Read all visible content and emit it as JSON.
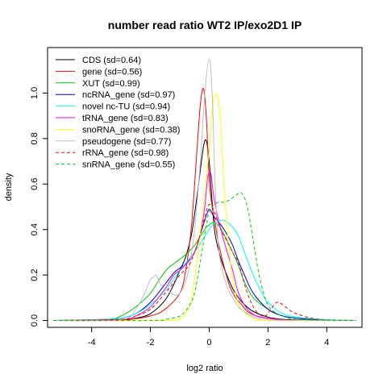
{
  "chart_data": {
    "type": "line",
    "title": "number read ratio WT2 IP/exo2D1 IP",
    "xlabel": "log2 ratio",
    "ylabel": "density",
    "xlim": [
      -5.5,
      5.2
    ],
    "ylim": [
      -0.03,
      1.2
    ],
    "x_ticks": [
      -4,
      -2,
      0,
      2,
      4
    ],
    "x_tick_labels": [
      "-4",
      "-2",
      "0",
      "2",
      "4"
    ],
    "y_ticks": [
      0.0,
      0.2,
      0.4,
      0.6,
      0.8,
      1.0
    ],
    "y_tick_labels": [
      "0.0",
      "0.2",
      "0.4",
      "0.6",
      "0.8",
      "1.0"
    ],
    "grid": false,
    "legend_position": "top-left",
    "series": [
      {
        "name": "CDS (sd=0.64)",
        "color": "#000000",
        "dashed": false,
        "x": [
          -5.3,
          -3,
          -2.5,
          -2,
          -1.5,
          -1.2,
          -1,
          -0.8,
          -0.6,
          -0.4,
          -0.2,
          -0.1,
          0,
          0.1,
          0.2,
          0.4,
          0.6,
          0.8,
          1,
          1.2,
          1.5,
          2,
          2.5,
          3,
          4,
          5
        ],
        "y": [
          0,
          0.003,
          0.01,
          0.03,
          0.09,
          0.16,
          0.22,
          0.28,
          0.38,
          0.56,
          0.76,
          0.79,
          0.7,
          0.52,
          0.38,
          0.27,
          0.2,
          0.14,
          0.1,
          0.07,
          0.04,
          0.015,
          0.005,
          0.003,
          0.001,
          0
        ]
      },
      {
        "name": "gene (sd=0.56)",
        "color": "#ff0000",
        "dashed": false,
        "x": [
          -5.3,
          -3,
          -2,
          -1.5,
          -1,
          -0.8,
          -0.6,
          -0.4,
          -0.3,
          -0.2,
          -0.1,
          0,
          0.1,
          0.2,
          0.3,
          0.5,
          0.7,
          0.9,
          1.1,
          1.3,
          1.6,
          2,
          2.5,
          3,
          5
        ],
        "y": [
          0,
          0.003,
          0.02,
          0.05,
          0.12,
          0.22,
          0.42,
          0.78,
          0.95,
          1.02,
          0.9,
          0.62,
          0.5,
          0.43,
          0.35,
          0.24,
          0.15,
          0.1,
          0.07,
          0.04,
          0.02,
          0.01,
          0.003,
          0.001,
          0
        ]
      },
      {
        "name": "XUT (sd=0.99)",
        "color": "#00cc00",
        "dashed": false,
        "x": [
          -5.3,
          -3.5,
          -3,
          -2.5,
          -2,
          -1.7,
          -1.4,
          -1.2,
          -1,
          -0.8,
          -0.5,
          -0.3,
          -0.1,
          0,
          0.1,
          0.3,
          0.5,
          0.8,
          1,
          1.2,
          1.5,
          2,
          2.5,
          3,
          3.5,
          4,
          5
        ],
        "y": [
          0,
          0.005,
          0.02,
          0.06,
          0.12,
          0.18,
          0.23,
          0.25,
          0.27,
          0.29,
          0.33,
          0.37,
          0.41,
          0.42,
          0.43,
          0.42,
          0.38,
          0.3,
          0.24,
          0.17,
          0.1,
          0.05,
          0.02,
          0.01,
          0.005,
          0.002,
          0
        ]
      },
      {
        "name": "ncRNA_gene (sd=0.97)",
        "color": "#0000cc",
        "dashed": false,
        "x": [
          -5.3,
          -3.5,
          -3,
          -2.5,
          -2,
          -1.5,
          -1.2,
          -1,
          -0.8,
          -0.5,
          -0.3,
          -0.1,
          0,
          0.1,
          0.2,
          0.4,
          0.6,
          0.8,
          1,
          1.2,
          1.5,
          2,
          2.5,
          3,
          3.5,
          4,
          5
        ],
        "y": [
          0,
          0.005,
          0.01,
          0.03,
          0.08,
          0.16,
          0.21,
          0.23,
          0.25,
          0.3,
          0.38,
          0.46,
          0.49,
          0.47,
          0.45,
          0.42,
          0.38,
          0.33,
          0.26,
          0.2,
          0.12,
          0.05,
          0.02,
          0.01,
          0.005,
          0.002,
          0
        ]
      },
      {
        "name": "novel nc-TU (sd=0.94)",
        "color": "#00ffff",
        "dashed": false,
        "x": [
          -5.3,
          -3.5,
          -3,
          -2.5,
          -2,
          -1.5,
          -1,
          -0.5,
          -0.2,
          0,
          0.2,
          0.5,
          0.8,
          1,
          1.2,
          1.5,
          1.8,
          2,
          2.5,
          3,
          3.5,
          4,
          5
        ],
        "y": [
          0,
          0.005,
          0.01,
          0.03,
          0.07,
          0.13,
          0.22,
          0.3,
          0.36,
          0.4,
          0.43,
          0.44,
          0.41,
          0.37,
          0.3,
          0.2,
          0.12,
          0.08,
          0.03,
          0.015,
          0.008,
          0.004,
          0
        ]
      },
      {
        "name": "tRNA_gene (sd=0.83)",
        "color": "#ff00ff",
        "dashed": false,
        "x": [
          -5.3,
          -3,
          -2.5,
          -2,
          -1.5,
          -1.2,
          -1,
          -0.7,
          -0.5,
          -0.3,
          -0.15,
          -0.05,
          0.05,
          0.15,
          0.3,
          0.5,
          0.8,
          1,
          1.3,
          1.6,
          2,
          2.5,
          3,
          5
        ],
        "y": [
          0,
          0.005,
          0.02,
          0.06,
          0.14,
          0.2,
          0.22,
          0.26,
          0.3,
          0.38,
          0.5,
          0.63,
          0.65,
          0.55,
          0.45,
          0.35,
          0.22,
          0.12,
          0.05,
          0.02,
          0.01,
          0.003,
          0.001,
          0
        ]
      },
      {
        "name": "snoRNA_gene (sd=0.38)",
        "color": "#ffff00",
        "dashed": false,
        "x": [
          -5.3,
          -1.5,
          -1,
          -0.8,
          -0.6,
          -0.4,
          -0.2,
          0,
          0.1,
          0.2,
          0.3,
          0.4,
          0.5,
          0.7,
          0.9,
          1.1,
          1.5,
          2,
          5
        ],
        "y": [
          0,
          0,
          0.01,
          0.03,
          0.1,
          0.28,
          0.5,
          0.75,
          0.92,
          0.99,
          0.98,
          0.85,
          0.6,
          0.28,
          0.12,
          0.05,
          0.01,
          0,
          0
        ]
      },
      {
        "name": "pseudogene (sd=0.77)",
        "color": "#bebebe",
        "dashed": false,
        "x": [
          -5.3,
          -3,
          -2.5,
          -2.2,
          -2,
          -1.9,
          -1.8,
          -1.7,
          -1.6,
          -1.5,
          -1.3,
          -1,
          -0.7,
          -0.5,
          -0.3,
          -0.15,
          0,
          0.1,
          0.2,
          0.3,
          0.4,
          0.6,
          0.8,
          1,
          1.3,
          1.6,
          2,
          2.5,
          5
        ],
        "y": [
          0,
          0.003,
          0.05,
          0.12,
          0.18,
          0.19,
          0.2,
          0.17,
          0.15,
          0.16,
          0.12,
          0.12,
          0.22,
          0.4,
          0.7,
          1.0,
          1.15,
          1.0,
          0.6,
          0.35,
          0.25,
          0.15,
          0.1,
          0.06,
          0.03,
          0.01,
          0.005,
          0.001,
          0
        ]
      },
      {
        "name": "rRNA_gene (sd=0.98)",
        "color": "#ff0000",
        "dashed": true,
        "x": [
          -5.3,
          -3,
          -2.5,
          -2,
          -1.5,
          -1,
          -0.7,
          -0.5,
          -0.3,
          -0.1,
          0,
          0.1,
          0.2,
          0.4,
          0.6,
          0.8,
          1,
          1.3,
          1.6,
          1.9,
          2.1,
          2.3,
          2.5,
          2.8,
          3.2,
          3.5,
          4,
          5
        ],
        "y": [
          0,
          0.005,
          0.02,
          0.05,
          0.12,
          0.2,
          0.24,
          0.3,
          0.38,
          0.48,
          0.51,
          0.5,
          0.47,
          0.4,
          0.35,
          0.3,
          0.25,
          0.12,
          0.04,
          0.02,
          0.05,
          0.08,
          0.07,
          0.04,
          0.02,
          0.01,
          0.002,
          0
        ]
      },
      {
        "name": "snRNA_gene (sd=0.55)",
        "color": "#00cc00",
        "dashed": true,
        "x": [
          -5.3,
          -2,
          -1.5,
          -1,
          -0.7,
          -0.5,
          -0.3,
          -0.1,
          0,
          0.1,
          0.3,
          0.5,
          0.7,
          0.9,
          1.1,
          1.3,
          1.5,
          1.7,
          1.9,
          2.1,
          2.5,
          3,
          5
        ],
        "y": [
          0,
          0,
          0.005,
          0.02,
          0.06,
          0.12,
          0.26,
          0.42,
          0.48,
          0.5,
          0.52,
          0.52,
          0.53,
          0.55,
          0.56,
          0.5,
          0.35,
          0.2,
          0.1,
          0.05,
          0.02,
          0.005,
          0
        ]
      }
    ]
  }
}
